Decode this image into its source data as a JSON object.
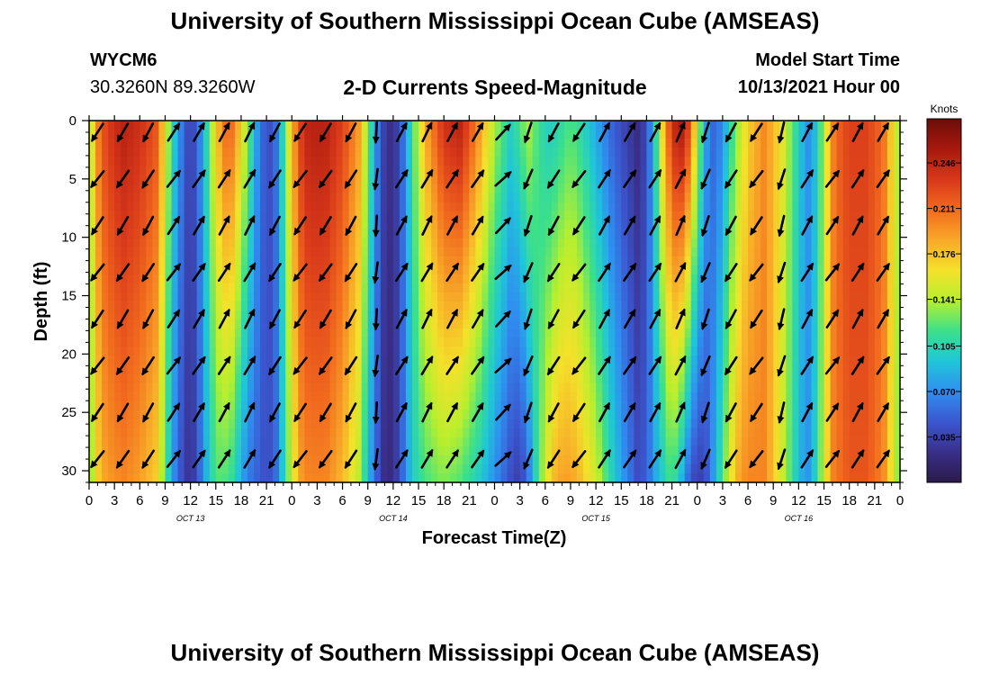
{
  "title": "University of Southern Mississippi Ocean Cube (AMSEAS)",
  "footer_title": "University of Southern Mississippi Ocean Cube (AMSEAS)",
  "station": {
    "id": "WYCM6",
    "coords": "30.3260N  89.3260W"
  },
  "model": {
    "label": "Model Start Time",
    "start": "10/13/2021 Hour 00"
  },
  "colors": {
    "arrow": "#000000",
    "background": "#ffffff"
  },
  "chart_data": {
    "type": "heatmap",
    "title": "2-D Currents Speed-Magnitude",
    "xlabel": "Forecast Time(Z)",
    "ylabel": "Depth (ft)",
    "x_range_hours": [
      0,
      96
    ],
    "ylim": [
      0,
      31
    ],
    "y_inverted": true,
    "x_ticks": [
      0,
      3,
      6,
      9,
      12,
      15,
      18,
      21,
      24,
      27,
      30,
      33,
      36,
      39,
      42,
      45,
      48,
      51,
      54,
      57,
      60,
      63,
      66,
      69,
      72,
      75,
      78,
      81,
      84,
      87,
      90,
      93,
      96
    ],
    "x_tick_labels": [
      "0",
      "3",
      "6",
      "9",
      "12",
      "15",
      "18",
      "21",
      "0",
      "3",
      "6",
      "9",
      "12",
      "15",
      "18",
      "21",
      "0",
      "3",
      "6",
      "9",
      "12",
      "15",
      "18",
      "21",
      "0",
      "3",
      "6",
      "9",
      "12",
      "15",
      "18",
      "21",
      "0"
    ],
    "y_ticks": [
      0,
      5,
      10,
      15,
      20,
      25,
      30
    ],
    "y_tick_labels": [
      "0",
      "5",
      "10",
      "15",
      "20",
      "25",
      "30"
    ],
    "day_labels": [
      {
        "hour": 12,
        "label": "OCT 13"
      },
      {
        "hour": 36,
        "label": "OCT 14"
      },
      {
        "hour": 60,
        "label": "OCT 15"
      },
      {
        "hour": 84,
        "label": "OCT 16"
      }
    ],
    "colorbar": {
      "unit": "Knots",
      "min": 0.0,
      "max": 0.28,
      "ticks": [
        0.035,
        0.07,
        0.105,
        0.141,
        0.176,
        0.211,
        0.246
      ],
      "tick_labels": [
        "0.035",
        "0.070",
        "0.105",
        "0.141",
        "0.176",
        "0.211",
        "0.246"
      ],
      "colormap": [
        "#2a1a4a",
        "#3a2f8a",
        "#3b57d0",
        "#2f8ef0",
        "#1fc6d8",
        "#3ce08a",
        "#b6ef2e",
        "#f4e12a",
        "#f8a828",
        "#f26b1e",
        "#d8381a",
        "#a8180e",
        "#6b0d08"
      ]
    },
    "speed_profile_hours": [
      0,
      1,
      2,
      4,
      6,
      8,
      9,
      10,
      11,
      12,
      13,
      14,
      15,
      16,
      17,
      18,
      19,
      20,
      21,
      22,
      23,
      24,
      25,
      26,
      28,
      30,
      32,
      33,
      34,
      35,
      36,
      37,
      38,
      39,
      40,
      42,
      44,
      46,
      48,
      50,
      51,
      52,
      53,
      54,
      55,
      56,
      57,
      58,
      60,
      62,
      64,
      65,
      66,
      67,
      68,
      69,
      70,
      71,
      72,
      73,
      74,
      75,
      76,
      77,
      78,
      80,
      82,
      84,
      85,
      86,
      87,
      88,
      89,
      90,
      92,
      94,
      96
    ],
    "speed_surface": [
      0.13,
      0.2,
      0.23,
      0.25,
      0.24,
      0.22,
      0.16,
      0.1,
      0.06,
      0.03,
      0.06,
      0.11,
      0.17,
      0.21,
      0.21,
      0.17,
      0.12,
      0.07,
      0.04,
      0.05,
      0.11,
      0.18,
      0.23,
      0.25,
      0.25,
      0.23,
      0.19,
      0.13,
      0.07,
      0.03,
      0.02,
      0.05,
      0.1,
      0.15,
      0.19,
      0.24,
      0.25,
      0.2,
      0.14,
      0.1,
      0.12,
      0.14,
      0.12,
      0.1,
      0.1,
      0.11,
      0.12,
      0.11,
      0.08,
      0.05,
      0.03,
      0.02,
      0.04,
      0.1,
      0.18,
      0.24,
      0.26,
      0.23,
      0.15,
      0.08,
      0.05,
      0.07,
      0.11,
      0.14,
      0.17,
      0.2,
      0.16,
      0.1,
      0.07,
      0.09,
      0.14,
      0.2,
      0.22,
      0.23,
      0.23,
      0.21,
      0.13
    ],
    "speed_bottom": [
      0.12,
      0.17,
      0.19,
      0.2,
      0.19,
      0.17,
      0.12,
      0.07,
      0.04,
      0.02,
      0.05,
      0.09,
      0.12,
      0.12,
      0.11,
      0.08,
      0.06,
      0.05,
      0.04,
      0.05,
      0.1,
      0.15,
      0.19,
      0.2,
      0.2,
      0.18,
      0.14,
      0.09,
      0.05,
      0.02,
      0.02,
      0.05,
      0.09,
      0.11,
      0.12,
      0.13,
      0.12,
      0.1,
      0.07,
      0.04,
      0.03,
      0.06,
      0.11,
      0.15,
      0.18,
      0.19,
      0.19,
      0.18,
      0.15,
      0.1,
      0.06,
      0.04,
      0.05,
      0.08,
      0.1,
      0.12,
      0.09,
      0.05,
      0.03,
      0.04,
      0.08,
      0.12,
      0.16,
      0.19,
      0.2,
      0.2,
      0.15,
      0.09,
      0.07,
      0.1,
      0.15,
      0.2,
      0.21,
      0.22,
      0.22,
      0.2,
      0.12
    ],
    "vector_columns": [
      {
        "hour": 1,
        "dir": 215
      },
      {
        "hour": 4,
        "dir": 212
      },
      {
        "hour": 7,
        "dir": 210
      },
      {
        "hour": 10,
        "dir": 35
      },
      {
        "hour": 13,
        "dir": 32
      },
      {
        "hour": 16,
        "dir": 30
      },
      {
        "hour": 19,
        "dir": 28
      },
      {
        "hour": 22,
        "dir": 210
      },
      {
        "hour": 25,
        "dir": 215
      },
      {
        "hour": 28,
        "dir": 213
      },
      {
        "hour": 31,
        "dir": 210
      },
      {
        "hour": 34,
        "dir": 185
      },
      {
        "hour": 37,
        "dir": 30
      },
      {
        "hour": 40,
        "dir": 28
      },
      {
        "hour": 43,
        "dir": 30
      },
      {
        "hour": 46,
        "dir": 32
      },
      {
        "hour": 49,
        "dir": 45
      },
      {
        "hour": 52,
        "dir": 200
      },
      {
        "hour": 55,
        "dir": 210
      },
      {
        "hour": 58,
        "dir": 215
      },
      {
        "hour": 61,
        "dir": 30
      },
      {
        "hour": 64,
        "dir": 32
      },
      {
        "hour": 67,
        "dir": 30
      },
      {
        "hour": 70,
        "dir": 25
      },
      {
        "hour": 73,
        "dir": 200
      },
      {
        "hour": 76,
        "dir": 210
      },
      {
        "hour": 79,
        "dir": 215
      },
      {
        "hour": 82,
        "dir": 195
      },
      {
        "hour": 85,
        "dir": 30
      },
      {
        "hour": 88,
        "dir": 35
      },
      {
        "hour": 91,
        "dir": 30
      },
      {
        "hour": 94,
        "dir": 32
      }
    ],
    "vector_depths_ft": [
      1,
      5,
      9,
      13,
      17,
      21,
      25,
      29
    ]
  }
}
